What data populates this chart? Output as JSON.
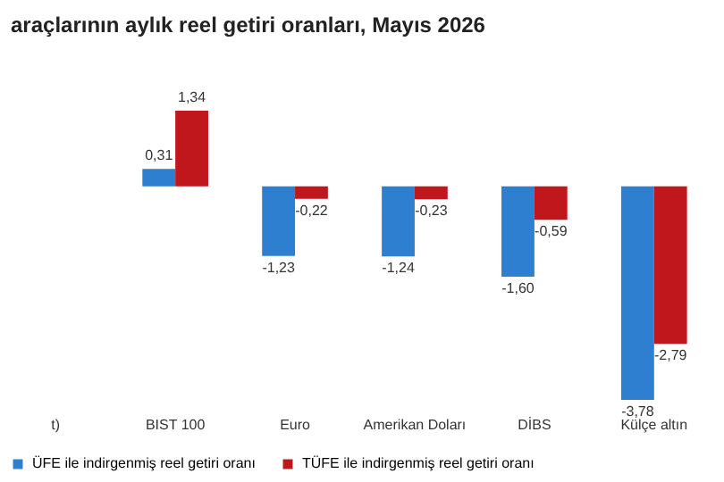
{
  "chart_data": {
    "type": "bar",
    "title": "araçlarının aylık reel getiri oranları, Mayıs 2026",
    "categories": [
      "t)",
      "BIST 100",
      "Euro",
      "Amerikan Doları",
      "DİBS",
      "Külçe altın"
    ],
    "legend": "bottom",
    "series": [
      {
        "name": "ÜFE ile indirgenmiş reel getiri oranı",
        "color": "#2e7fcf",
        "values": [
          null,
          0.31,
          -1.23,
          -1.24,
          -1.6,
          -3.78
        ],
        "value_labels": [
          null,
          "0,31",
          "-1,23",
          "-1,24",
          "-1,60",
          "-3,78"
        ]
      },
      {
        "name": "TÜFE ile indirgenmiş reel getiri oranı",
        "color": "#c0171c",
        "values": [
          null,
          1.34,
          -0.22,
          -0.23,
          -0.59,
          -2.79
        ],
        "value_labels": [
          null,
          "1,34",
          "-0,22",
          "-0,23",
          "-0,59",
          "-2,79"
        ]
      }
    ]
  }
}
